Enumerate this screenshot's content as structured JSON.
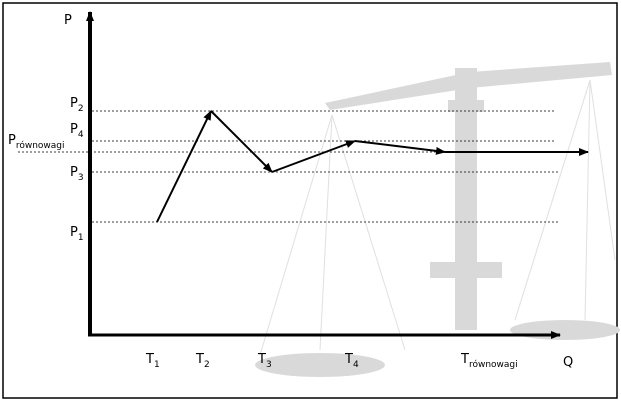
{
  "axes": {
    "y_label": "P",
    "x_label": "Q"
  },
  "price_levels": [
    {
      "main": "P",
      "sub": "2"
    },
    {
      "main": "P",
      "sub": "4"
    },
    {
      "main": "P",
      "sub": "równowagi"
    },
    {
      "main": "P",
      "sub": "3"
    },
    {
      "main": "P",
      "sub": "1"
    }
  ],
  "time_points": [
    {
      "main": "T",
      "sub": "1"
    },
    {
      "main": "T",
      "sub": "2"
    },
    {
      "main": "T",
      "sub": "3"
    },
    {
      "main": "T",
      "sub": "4"
    },
    {
      "main": "T",
      "sub": "równowagi"
    }
  ]
}
